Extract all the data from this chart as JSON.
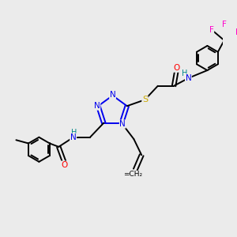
{
  "bg_color": "#ebebeb",
  "atom_colors": {
    "N": "#0000ee",
    "O": "#ff0000",
    "S": "#ccaa00",
    "F": "#ff00cc",
    "H": "#008888",
    "C": "#000000"
  },
  "lw": 1.4
}
